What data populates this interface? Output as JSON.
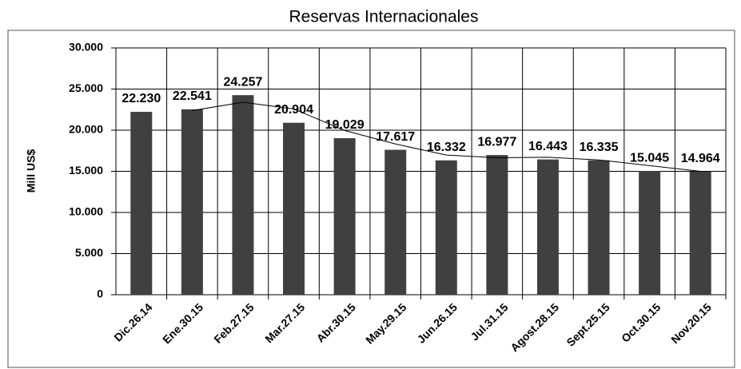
{
  "chart_data": {
    "type": "bar",
    "title": "Reservas Internacionales",
    "y_label": "Mill US$",
    "categories": [
      "Dic.26.14",
      "Ene.30.15",
      "Feb.27.15",
      "Mar.27.15",
      "Abr.30.15",
      "May.29.15",
      "Jun.26.15",
      "Jul.31.15",
      "Agost.28.15",
      "Sept.25.15",
      "Oct.30.15",
      "Nov.20.15"
    ],
    "values": [
      22230,
      22541,
      24257,
      20904,
      19029,
      17617,
      16332,
      16977,
      16443,
      16335,
      15045,
      14964
    ],
    "value_labels": [
      "22.230",
      "22.541",
      "24.257",
      "20.904",
      "19.029",
      "17.617",
      "16.332",
      "16.977",
      "16.443",
      "16.335",
      "15.045",
      "14.964"
    ],
    "color": "#404040",
    "trendline": "moving-average-2",
    "trendline_color": "#000000",
    "ylim": [
      0,
      30000
    ],
    "yticks": [
      0,
      {
        "value": 5000,
        "label": "5.000"
      },
      {
        "value": 10000,
        "label": "10.000"
      },
      {
        "value": 15000,
        "label": "15.000"
      },
      {
        "value": 20000,
        "label": "20.000"
      },
      {
        "value": 25000,
        "label": "25.000"
      },
      {
        "value": 30000,
        "label": "30.000"
      }
    ],
    "grid": true
  }
}
